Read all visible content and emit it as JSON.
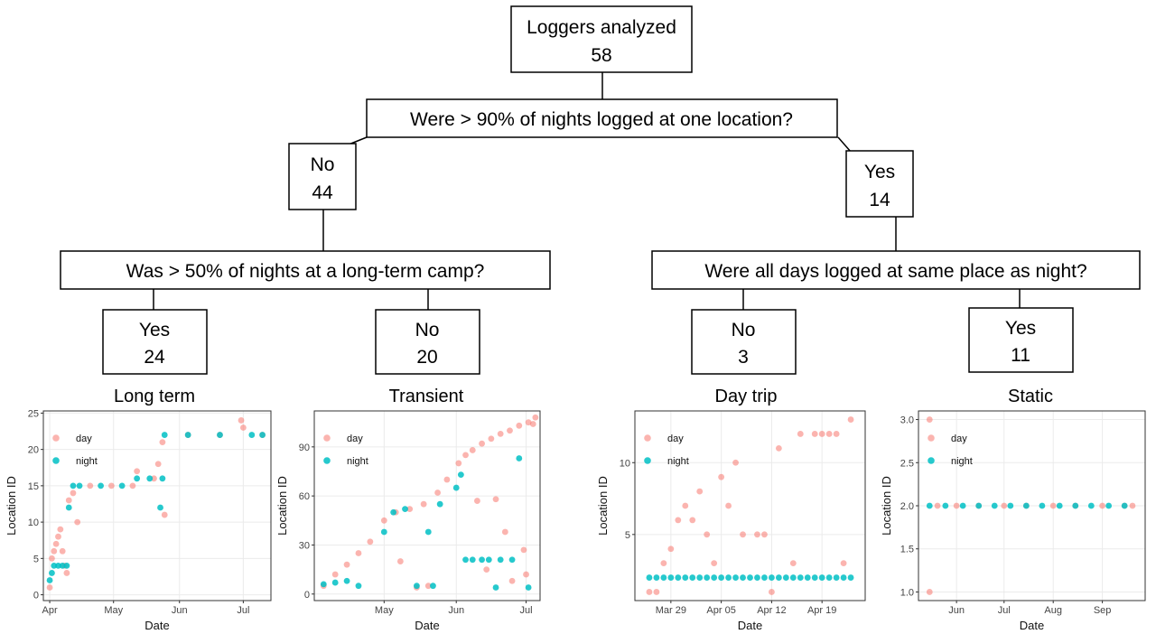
{
  "tree": {
    "root": {
      "line1": "Loggers analyzed",
      "line2": "58"
    },
    "q1": "Were > 90% of nights logged at one location?",
    "q1_no": {
      "line1": "No",
      "line2": "44"
    },
    "q1_yes": {
      "line1": "Yes",
      "line2": "14"
    },
    "q2": "Was > 50% of nights at a long-term camp?",
    "q3": "Were all days logged at same place as night?",
    "q2_yes": {
      "line1": "Yes",
      "line2": "24"
    },
    "q2_no": {
      "line1": "No",
      "line2": "20"
    },
    "q3_no": {
      "line1": "No",
      "line2": "3"
    },
    "q3_yes": {
      "line1": "Yes",
      "line2": "11"
    }
  },
  "colors": {
    "day": "#f8766d",
    "night": "#00bfc4",
    "panel_bg": "#ffffff",
    "grid": "#ebebeb"
  },
  "chart_data": [
    {
      "type": "scatter",
      "title": "Long term",
      "xlabel": "Date",
      "ylabel": "Location ID",
      "x_ticks": [
        "Apr",
        "May",
        "Jun",
        "Jul"
      ],
      "y_ticks": [
        "0",
        "5",
        "10",
        "15",
        "20",
        "25"
      ],
      "legend": [
        "day",
        "night"
      ],
      "legend_position": "top-left",
      "series": [
        {
          "name": "day",
          "x": [
            "2022-04-01",
            "2022-04-02",
            "2022-04-03",
            "2022-04-04",
            "2022-04-05",
            "2022-04-06",
            "2022-04-07",
            "2022-04-08",
            "2022-04-09",
            "2022-04-10",
            "2022-04-12",
            "2022-04-14",
            "2022-04-20",
            "2022-04-30",
            "2022-05-10",
            "2022-05-12",
            "2022-05-20",
            "2022-05-22",
            "2022-05-24",
            "2022-05-25",
            "2022-06-05",
            "2022-06-20",
            "2022-06-30",
            "2022-07-01",
            "2022-07-10"
          ],
          "y": [
            1,
            5,
            6,
            7,
            8,
            9,
            6,
            4,
            3,
            13,
            14,
            10,
            15,
            15,
            15,
            17,
            16,
            18,
            21,
            11,
            22,
            22,
            24,
            23,
            22
          ]
        },
        {
          "name": "night",
          "x": [
            "2022-04-01",
            "2022-04-02",
            "2022-04-03",
            "2022-04-05",
            "2022-04-07",
            "2022-04-09",
            "2022-04-10",
            "2022-04-12",
            "2022-04-15",
            "2022-04-25",
            "2022-05-05",
            "2022-05-12",
            "2022-05-18",
            "2022-05-23",
            "2022-05-24",
            "2022-05-25",
            "2022-06-05",
            "2022-06-20",
            "2022-07-05",
            "2022-07-10"
          ],
          "y": [
            2,
            3,
            4,
            4,
            4,
            4,
            12,
            15,
            15,
            15,
            15,
            16,
            16,
            12,
            16,
            22,
            22,
            22,
            22,
            22
          ]
        }
      ]
    },
    {
      "type": "scatter",
      "title": "Transient",
      "xlabel": "Date",
      "ylabel": "Location ID",
      "x_ticks": [
        "May",
        "Jun",
        "Jul"
      ],
      "y_ticks": [
        "0",
        "30",
        "60",
        "90"
      ],
      "legend": [
        "day",
        "night"
      ],
      "legend_position": "top-left",
      "series": [
        {
          "name": "day",
          "x": [
            "2022-04-05",
            "2022-04-10",
            "2022-04-15",
            "2022-04-20",
            "2022-04-25",
            "2022-05-01",
            "2022-05-06",
            "2022-05-12",
            "2022-05-18",
            "2022-05-24",
            "2022-05-28",
            "2022-06-02",
            "2022-06-05",
            "2022-06-08",
            "2022-06-12",
            "2022-06-16",
            "2022-06-20",
            "2022-06-24",
            "2022-06-28",
            "2022-07-02",
            "2022-07-05",
            "2022-05-15",
            "2022-05-20",
            "2022-06-10",
            "2022-06-18",
            "2022-06-25",
            "2022-07-01",
            "2022-05-08",
            "2022-06-14",
            "2022-06-22",
            "2022-06-30",
            "2022-07-04"
          ],
          "y": [
            5,
            12,
            18,
            25,
            32,
            45,
            50,
            52,
            55,
            62,
            70,
            80,
            85,
            88,
            92,
            95,
            98,
            100,
            103,
            105,
            108,
            4,
            5,
            57,
            58,
            8,
            12,
            20,
            15,
            38,
            27,
            104
          ]
        },
        {
          "name": "night",
          "x": [
            "2022-04-05",
            "2022-04-10",
            "2022-04-15",
            "2022-04-20",
            "2022-05-01",
            "2022-05-05",
            "2022-05-10",
            "2022-05-15",
            "2022-05-20",
            "2022-05-25",
            "2022-06-01",
            "2022-06-05",
            "2022-06-08",
            "2022-06-12",
            "2022-06-15",
            "2022-06-20",
            "2022-06-25",
            "2022-06-28",
            "2022-07-02",
            "2022-05-22",
            "2022-06-03",
            "2022-06-18"
          ],
          "y": [
            6,
            7,
            8,
            5,
            38,
            50,
            52,
            5,
            38,
            55,
            65,
            21,
            21,
            21,
            21,
            21,
            21,
            83,
            4,
            5,
            73,
            4
          ]
        }
      ]
    },
    {
      "type": "scatter",
      "title": "Day trip",
      "xlabel": "Date",
      "ylabel": "Location ID",
      "x_ticks": [
        "Mar 29",
        "Apr 05",
        "Apr 12",
        "Apr 19"
      ],
      "y_ticks": [
        "5",
        "10"
      ],
      "legend": [
        "day",
        "night"
      ],
      "legend_position": "top-left",
      "series": [
        {
          "name": "day",
          "x": [
            "2022-03-26",
            "2022-03-27",
            "2022-03-28",
            "2022-03-29",
            "2022-03-30",
            "2022-03-31",
            "2022-04-01",
            "2022-04-02",
            "2022-04-03",
            "2022-04-04",
            "2022-04-05",
            "2022-04-06",
            "2022-04-07",
            "2022-04-08",
            "2022-04-10",
            "2022-04-11",
            "2022-04-12",
            "2022-04-13",
            "2022-04-15",
            "2022-04-16",
            "2022-04-18",
            "2022-04-19",
            "2022-04-20",
            "2022-04-21",
            "2022-04-22",
            "2022-04-23"
          ],
          "y": [
            1,
            1,
            3,
            4,
            6,
            7,
            6,
            8,
            5,
            3,
            9,
            7,
            10,
            5,
            5,
            5,
            1,
            11,
            3,
            12,
            12,
            12,
            12,
            12,
            3,
            13
          ]
        },
        {
          "name": "night",
          "x": [
            "2022-03-26",
            "2022-03-27",
            "2022-03-28",
            "2022-03-29",
            "2022-03-30",
            "2022-03-31",
            "2022-04-01",
            "2022-04-02",
            "2022-04-03",
            "2022-04-04",
            "2022-04-05",
            "2022-04-06",
            "2022-04-07",
            "2022-04-08",
            "2022-04-09",
            "2022-04-10",
            "2022-04-11",
            "2022-04-12",
            "2022-04-13",
            "2022-04-14",
            "2022-04-15",
            "2022-04-16",
            "2022-04-17",
            "2022-04-18",
            "2022-04-19",
            "2022-04-20",
            "2022-04-21",
            "2022-04-22",
            "2022-04-23"
          ],
          "y": [
            2,
            2,
            2,
            2,
            2,
            2,
            2,
            2,
            2,
            2,
            2,
            2,
            2,
            2,
            2,
            2,
            2,
            2,
            2,
            2,
            2,
            2,
            2,
            2,
            2,
            2,
            2,
            2,
            2
          ]
        }
      ]
    },
    {
      "type": "scatter",
      "title": "Static",
      "xlabel": "Date",
      "ylabel": "Location ID",
      "x_ticks": [
        "Jun",
        "Jul",
        "Aug",
        "Sep"
      ],
      "y_ticks": [
        "1.0",
        "1.5",
        "2.0",
        "2.5",
        "3.0"
      ],
      "legend": [
        "day",
        "night"
      ],
      "legend_position": "top-left",
      "series": [
        {
          "name": "day",
          "x": [
            "2022-05-15",
            "2022-05-15",
            "2022-05-20",
            "2022-06-01",
            "2022-06-15",
            "2022-07-01",
            "2022-07-15",
            "2022-08-01",
            "2022-08-15",
            "2022-09-01",
            "2022-09-15",
            "2022-09-20"
          ],
          "y": [
            3,
            1,
            2,
            2,
            2,
            2,
            2,
            2,
            2,
            2,
            2,
            2
          ]
        },
        {
          "name": "night",
          "x": [
            "2022-05-15",
            "2022-05-25",
            "2022-06-05",
            "2022-06-15",
            "2022-06-25",
            "2022-07-05",
            "2022-07-15",
            "2022-07-25",
            "2022-08-05",
            "2022-08-15",
            "2022-08-25",
            "2022-09-05",
            "2022-09-15"
          ],
          "y": [
            2,
            2,
            2,
            2,
            2,
            2,
            2,
            2,
            2,
            2,
            2,
            2,
            2
          ]
        }
      ]
    }
  ]
}
